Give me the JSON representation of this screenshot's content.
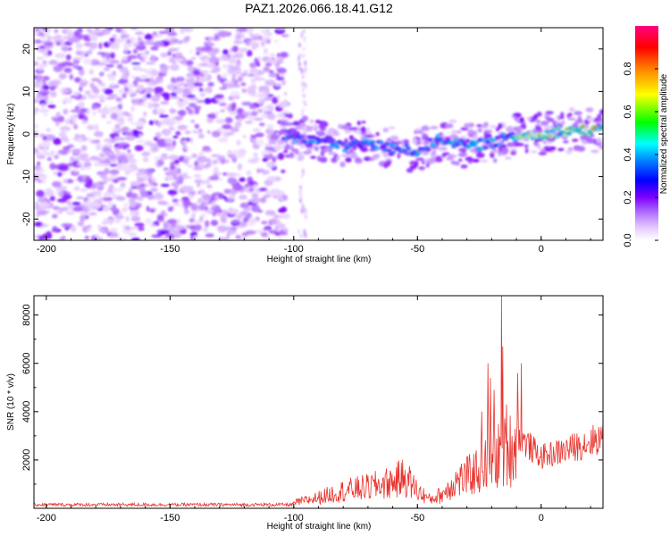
{
  "title": "PAZ1.2026.066.18.41.G12",
  "chart_data": [
    {
      "type": "heatmap",
      "xlabel": "Height of straight line (km)",
      "ylabel": "Frequency (Hz)",
      "xlim": [
        -205,
        25
      ],
      "ylim": [
        -25,
        25
      ],
      "xticks": [
        -200,
        -150,
        -100,
        -50,
        0
      ],
      "yticks": [
        -20,
        -10,
        0,
        10,
        20
      ],
      "colorbar": {
        "label": "Normalized spectral amplitude",
        "ticks": [
          0.0,
          0.2,
          0.4,
          0.6,
          0.8
        ],
        "range": [
          0,
          1
        ]
      },
      "ridge": [
        {
          "x": -103,
          "f": -0.5
        },
        {
          "x": -90,
          "f": -1.5
        },
        {
          "x": -80,
          "f": -3
        },
        {
          "x": -70,
          "f": -2
        },
        {
          "x": -60,
          "f": -3.5
        },
        {
          "x": -50,
          "f": -4
        },
        {
          "x": -40,
          "f": -1
        },
        {
          "x": -30,
          "f": -3
        },
        {
          "x": -20,
          "f": -2
        },
        {
          "x": -10,
          "f": -0.5
        },
        {
          "x": 0,
          "f": 0
        },
        {
          "x": 10,
          "f": 0.8
        },
        {
          "x": 20,
          "f": 0.8
        }
      ]
    },
    {
      "type": "line",
      "xlabel": "Height of straight line (km)",
      "ylabel": "SNR (10 * v/v)",
      "xlim": [
        -205,
        25
      ],
      "ylim": [
        0,
        8800
      ],
      "xticks": [
        -200,
        -150,
        -100,
        -50,
        0
      ],
      "yticks": [
        2000,
        4000,
        6000,
        8000
      ],
      "color": "#e8332d",
      "envelope": [
        {
          "x": -205,
          "y": 150
        },
        {
          "x": -110,
          "y": 160
        },
        {
          "x": -100,
          "y": 300
        },
        {
          "x": -90,
          "y": 600
        },
        {
          "x": -80,
          "y": 1000
        },
        {
          "x": -70,
          "y": 1200
        },
        {
          "x": -60,
          "y": 1500
        },
        {
          "x": -55,
          "y": 1800
        },
        {
          "x": -50,
          "y": 1000
        },
        {
          "x": -45,
          "y": 500
        },
        {
          "x": -40,
          "y": 800
        },
        {
          "x": -35,
          "y": 1500
        },
        {
          "x": -30,
          "y": 1800
        },
        {
          "x": -25,
          "y": 2200
        },
        {
          "x": -20,
          "y": 2800
        },
        {
          "x": -17,
          "y": 3000
        },
        {
          "x": -10,
          "y": 3600
        },
        {
          "x": -7,
          "y": 3000
        },
        {
          "x": 0,
          "y": 2300
        },
        {
          "x": 10,
          "y": 2600
        },
        {
          "x": 25,
          "y": 3200
        }
      ],
      "spikes": [
        {
          "x": -21.5,
          "y": 6000
        },
        {
          "x": -20.5,
          "y": 5400
        },
        {
          "x": -19,
          "y": 4900
        },
        {
          "x": -16,
          "y": 8800
        },
        {
          "x": -15.5,
          "y": 6700
        },
        {
          "x": -9.5,
          "y": 5600
        },
        {
          "x": -8,
          "y": 6000
        },
        {
          "x": -24,
          "y": 4000
        },
        {
          "x": -14,
          "y": 4300
        }
      ]
    }
  ]
}
